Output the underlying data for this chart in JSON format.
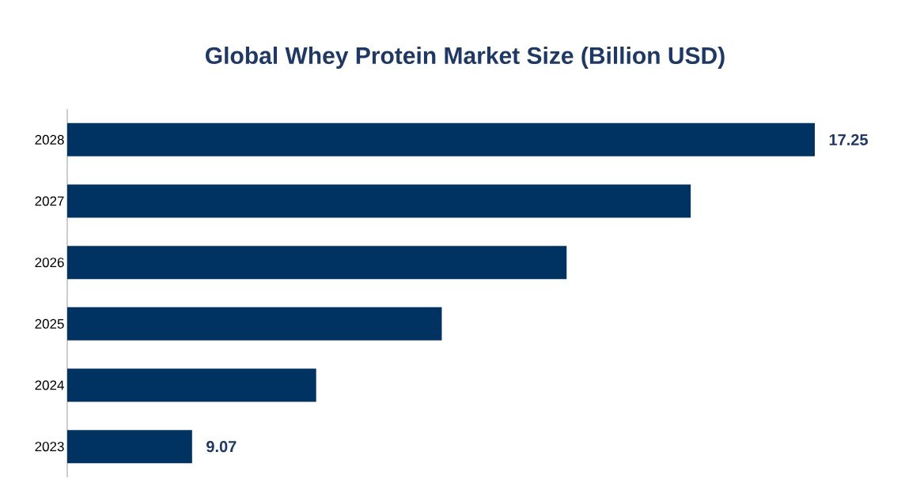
{
  "chart_data": {
    "type": "bar",
    "orientation": "horizontal",
    "title": "Global Whey Protein Market Size (Billion USD)",
    "categories": [
      "2028",
      "2027",
      "2026",
      "2025",
      "2024",
      "2023"
    ],
    "values": [
      17.25,
      15.62,
      13.99,
      12.35,
      10.7,
      9.07
    ],
    "value_labels": [
      "17.25",
      null,
      null,
      null,
      null,
      "9.07"
    ],
    "xlim": [
      7.43,
      17.25
    ],
    "color": "#003361"
  }
}
